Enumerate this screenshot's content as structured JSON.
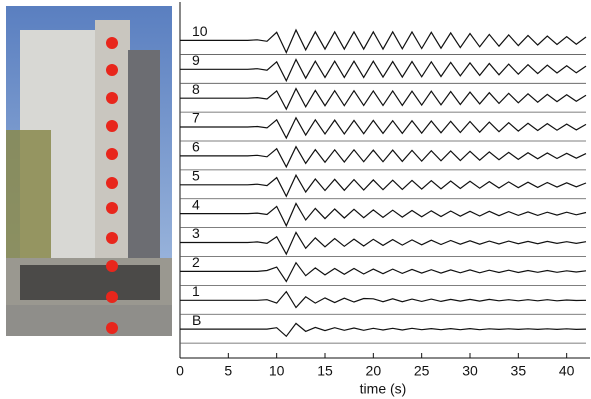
{
  "chart_data": {
    "type": "line",
    "xlabel": "time (s)",
    "xlim": [
      0,
      42
    ],
    "xticks": [
      0,
      5,
      10,
      15,
      20,
      25,
      30,
      35,
      40
    ],
    "ylim": [
      -1,
      11.4
    ],
    "x": [
      0,
      1,
      2,
      3,
      4,
      5,
      6,
      7,
      8,
      9,
      10,
      11,
      12,
      13,
      14,
      15,
      16,
      17,
      18,
      19,
      20,
      21,
      22,
      23,
      24,
      25,
      26,
      27,
      28,
      29,
      30,
      31,
      32,
      33,
      34,
      35,
      36,
      37,
      38,
      39,
      40,
      41,
      42
    ],
    "series": [
      {
        "name": "B",
        "color": "#111111",
        "values": [
          0,
          0,
          0,
          0,
          0,
          0,
          0,
          0,
          0,
          0,
          0.05,
          -0.25,
          0.2,
          -0.08,
          0.06,
          -0.05,
          0.05,
          -0.04,
          0.04,
          -0.04,
          0.03,
          -0.03,
          0.03,
          -0.03,
          0.03,
          -0.02,
          0.02,
          -0.02,
          0.02,
          -0.02,
          0.02,
          -0.02,
          0.01,
          -0.01,
          0.01,
          -0.01,
          0.01,
          -0.01,
          0.01,
          -0.01,
          0.01,
          -0.01,
          0
        ]
      },
      {
        "name": "1",
        "color": "#111111",
        "values": [
          0,
          0,
          0,
          0,
          0,
          0,
          0,
          0,
          0,
          0.02,
          -0.1,
          0.3,
          -0.25,
          0.12,
          -0.1,
          0.08,
          -0.08,
          0.07,
          -0.06,
          0.06,
          0.05,
          -0.05,
          0.05,
          -0.05,
          0.04,
          -0.04,
          0.04,
          -0.04,
          0.03,
          -0.03,
          0.03,
          -0.03,
          0.03,
          -0.02,
          0.02,
          -0.02,
          0.02,
          -0.02,
          0.02,
          -0.02,
          0.01,
          -0.01,
          0
        ]
      },
      {
        "name": "2",
        "color": "#111111",
        "values": [
          0,
          0,
          0,
          0,
          0,
          0,
          0,
          0,
          0,
          0.03,
          0.15,
          -0.35,
          0.3,
          -0.15,
          0.12,
          -0.12,
          0.1,
          -0.1,
          0.1,
          -0.09,
          0.08,
          -0.08,
          0.08,
          -0.07,
          0.07,
          -0.06,
          0.06,
          -0.06,
          0.05,
          -0.05,
          0.05,
          -0.05,
          0.04,
          -0.04,
          0.04,
          -0.04,
          0.03,
          -0.03,
          0.03,
          -0.03,
          0.02,
          -0.02,
          0.02
        ]
      },
      {
        "name": "3",
        "color": "#111111",
        "values": [
          0,
          0,
          0,
          0,
          0,
          0,
          0,
          0,
          0.02,
          -0.03,
          0.2,
          -0.4,
          0.35,
          -0.2,
          0.16,
          -0.15,
          0.14,
          -0.13,
          0.12,
          -0.12,
          0.11,
          -0.1,
          0.1,
          -0.09,
          0.09,
          -0.08,
          0.08,
          -0.07,
          0.07,
          -0.06,
          0.06,
          -0.06,
          0.05,
          -0.05,
          0.05,
          -0.04,
          0.04,
          -0.04,
          0.04,
          -0.03,
          0.03,
          -0.03,
          0.03
        ]
      },
      {
        "name": "4",
        "color": "#111111",
        "values": [
          0,
          0,
          0,
          0,
          0,
          0,
          0,
          0,
          0.02,
          -0.03,
          0.25,
          -0.42,
          0.35,
          -0.22,
          0.18,
          -0.17,
          0.16,
          -0.15,
          0.15,
          -0.14,
          0.13,
          -0.13,
          0.12,
          -0.12,
          0.11,
          -0.11,
          0.1,
          -0.1,
          0.09,
          -0.09,
          0.08,
          -0.08,
          0.08,
          -0.07,
          0.07,
          -0.06,
          0.06,
          -0.06,
          0.05,
          -0.05,
          0.05,
          -0.04,
          0.04
        ]
      },
      {
        "name": "5",
        "color": "#111111",
        "values": [
          0,
          0,
          0,
          0,
          0,
          0,
          0,
          0,
          0.02,
          -0.03,
          0.25,
          -0.4,
          0.33,
          -0.25,
          0.2,
          -0.2,
          0.19,
          -0.19,
          0.18,
          -0.18,
          0.17,
          -0.17,
          0.16,
          -0.16,
          0.15,
          -0.15,
          0.14,
          -0.14,
          0.13,
          -0.13,
          0.12,
          -0.12,
          0.11,
          -0.11,
          0.1,
          -0.1,
          0.09,
          -0.09,
          0.08,
          -0.08,
          0.07,
          -0.07,
          0.06
        ]
      },
      {
        "name": "6",
        "color": "#111111",
        "values": [
          0,
          0,
          0,
          0,
          0,
          0,
          0,
          0,
          0.02,
          -0.03,
          0.25,
          -0.38,
          0.32,
          -0.26,
          0.22,
          -0.22,
          0.21,
          -0.21,
          0.21,
          -0.2,
          0.2,
          -0.2,
          0.2,
          -0.19,
          0.19,
          -0.18,
          0.18,
          -0.17,
          0.17,
          -0.16,
          0.16,
          -0.15,
          0.14,
          -0.13,
          0.12,
          -0.12,
          0.11,
          -0.1,
          0.1,
          -0.09,
          0.09,
          -0.08,
          0.08
        ]
      },
      {
        "name": "7",
        "color": "#111111",
        "values": [
          0,
          0,
          0,
          0,
          0,
          0,
          0,
          0,
          0.02,
          -0.03,
          0.25,
          -0.38,
          0.32,
          -0.28,
          0.25,
          -0.24,
          0.24,
          -0.24,
          0.23,
          -0.23,
          0.23,
          -0.22,
          0.22,
          -0.22,
          0.22,
          -0.21,
          0.21,
          -0.2,
          0.2,
          -0.19,
          0.19,
          -0.18,
          0.17,
          -0.16,
          0.15,
          -0.14,
          0.13,
          -0.12,
          0.12,
          -0.11,
          0.1,
          -0.1,
          0.09
        ]
      },
      {
        "name": "8",
        "color": "#111111",
        "values": [
          0,
          0,
          0,
          0,
          0,
          0,
          0,
          0,
          0.02,
          -0.03,
          0.25,
          -0.38,
          0.33,
          -0.3,
          0.27,
          -0.26,
          0.26,
          -0.26,
          0.26,
          -0.25,
          0.25,
          -0.25,
          0.25,
          -0.25,
          0.24,
          -0.24,
          0.24,
          -0.23,
          0.23,
          -0.22,
          0.21,
          -0.2,
          0.19,
          -0.18,
          0.17,
          -0.16,
          0.15,
          -0.14,
          0.13,
          -0.12,
          0.12,
          -0.11,
          0.1
        ]
      },
      {
        "name": "9",
        "color": "#111111",
        "values": [
          0,
          0,
          0,
          0,
          0,
          0,
          0,
          0,
          0.02,
          -0.03,
          0.26,
          -0.4,
          0.34,
          -0.31,
          0.28,
          -0.28,
          0.28,
          -0.28,
          0.28,
          -0.28,
          0.28,
          -0.27,
          0.27,
          -0.27,
          0.27,
          -0.26,
          0.26,
          -0.25,
          0.24,
          -0.23,
          0.22,
          -0.21,
          0.2,
          -0.19,
          0.18,
          -0.17,
          0.16,
          -0.15,
          0.14,
          -0.13,
          0.12,
          -0.12,
          0.11
        ]
      },
      {
        "name": "10",
        "color": "#111111",
        "values": [
          0,
          0,
          0,
          0,
          0,
          0,
          0,
          0,
          0.02,
          -0.03,
          0.28,
          -0.42,
          0.36,
          -0.33,
          0.3,
          -0.3,
          0.3,
          -0.3,
          0.3,
          -0.3,
          0.3,
          -0.3,
          0.3,
          -0.29,
          0.29,
          -0.28,
          0.28,
          -0.27,
          0.26,
          -0.25,
          0.24,
          -0.22,
          0.21,
          -0.2,
          0.19,
          -0.18,
          0.17,
          -0.16,
          0.15,
          -0.14,
          0.13,
          -0.13,
          0.12
        ]
      }
    ]
  }
}
